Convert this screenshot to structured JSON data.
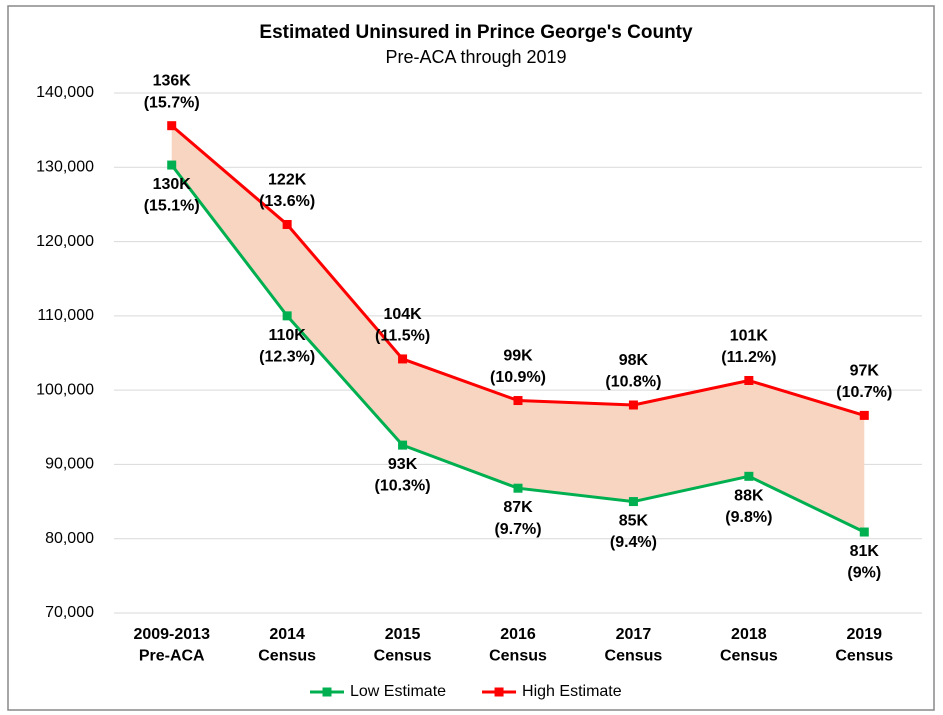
{
  "chart_data": {
    "type": "line",
    "title": "Estimated Uninsured in Prince George's County",
    "subtitle": "Pre-ACA through 2019",
    "categories": [
      "2009-2013\nPre-ACA",
      "2014\nCensus",
      "2015\nCensus",
      "2016\nCensus",
      "2017\nCensus",
      "2018\nCensus",
      "2019\nCensus"
    ],
    "series": [
      {
        "name": "Low Estimate",
        "color": "#00b050",
        "values": [
          130300,
          110000,
          92600,
          86800,
          85000,
          88400,
          80900
        ],
        "value_labels": [
          "130K\n(15.1%)",
          "110K\n(12.3%)",
          "93K\n(10.3%)",
          "87K\n(9.7%)",
          "85K\n(9.4%)",
          "88K\n(9.8%)",
          "81K\n(9%)"
        ]
      },
      {
        "name": "High Estimate",
        "color": "#ff0000",
        "values": [
          135600,
          122300,
          104200,
          98600,
          98000,
          101300,
          96600
        ],
        "value_labels": [
          "136K\n(15.7%)",
          "122K\n(13.6%)",
          "104K\n(11.5%)",
          "99K\n(10.9%)",
          "98K\n(10.8%)",
          "101K\n(11.2%)",
          "97K\n(10.7%)"
        ]
      }
    ],
    "fill_between": true,
    "fill_color": "#f8d5c0",
    "ylim": [
      70000,
      140000
    ],
    "yticks": [
      {
        "value": 70000,
        "label": "70,000"
      },
      {
        "value": 80000,
        "label": "80,000"
      },
      {
        "value": 90000,
        "label": "90,000"
      },
      {
        "value": 100000,
        "label": "100,000"
      },
      {
        "value": 110000,
        "label": "110,000"
      },
      {
        "value": 120000,
        "label": "120,000"
      },
      {
        "value": 130000,
        "label": "130,000"
      },
      {
        "value": 140000,
        "label": "140,000"
      }
    ],
    "grid": true,
    "legend": "bottom"
  }
}
